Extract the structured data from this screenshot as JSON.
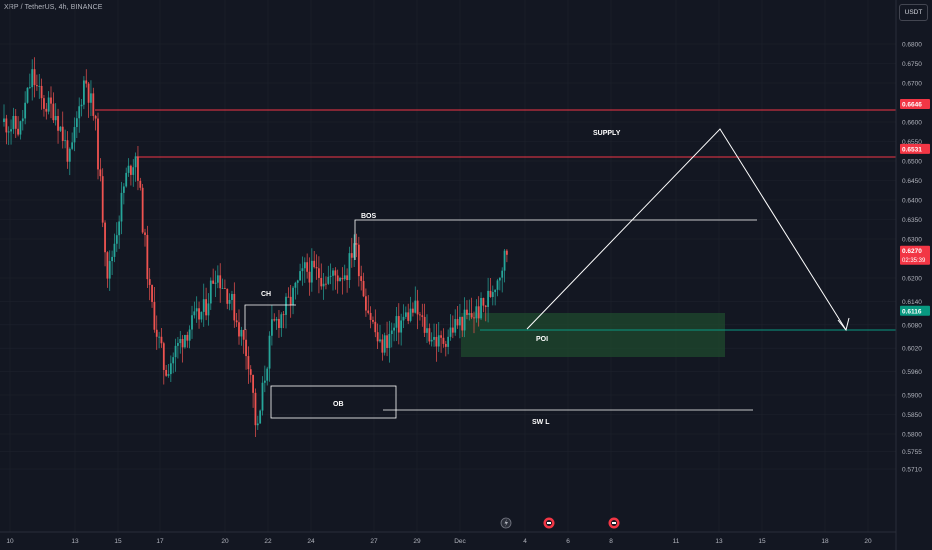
{
  "header": {
    "symbol": "XRP / TetherUS, 4h, BINANCE",
    "currency": "USDT"
  },
  "colors": {
    "background": "#131722",
    "grid": "#1e222d",
    "up": "#26a69a",
    "down": "#ef5350",
    "level_line": "#f23645",
    "poi_line": "#089981",
    "poi_zone": "#1f4a2e",
    "drawing": "#ffffff",
    "axis_text": "#b2b5be"
  },
  "chart_data": {
    "type": "candlestick",
    "timeframe": "4h",
    "y_axis": {
      "ticks": [
        0.68,
        0.675,
        0.67,
        0.66,
        0.655,
        0.65,
        0.645,
        0.64,
        0.635,
        0.63,
        0.62,
        0.614,
        0.608,
        0.602,
        0.596,
        0.59,
        0.585,
        0.58,
        0.5755,
        0.571
      ],
      "tick_labels": [
        "0.6800",
        "0.6750",
        "0.6700",
        "0.6600",
        "0.6550",
        "0.6500",
        "0.6450",
        "0.6400",
        "0.6350",
        "0.6300",
        "0.6200",
        "0.6140",
        "0.6080",
        "0.6020",
        "0.5960",
        "0.5900",
        "0.5850",
        "0.5800",
        "0.5755",
        "0.5710"
      ]
    },
    "x_axis": {
      "tick_labels": [
        "10",
        "13",
        "15",
        "17",
        "20",
        "22",
        "24",
        "27",
        "29",
        "Dec",
        "4",
        "6",
        "8",
        "11",
        "13",
        "15",
        "18",
        "20"
      ]
    },
    "price_tags": [
      {
        "label": "0.6646",
        "value": 0.6646,
        "color": "#f23645"
      },
      {
        "label": "0.6531",
        "value": 0.6531,
        "color": "#f23645"
      },
      {
        "label": "0.6270",
        "value": 0.627,
        "color": "#f23645",
        "sub": "02:35:39"
      },
      {
        "label": "0.6116",
        "value": 0.6116,
        "color": "#089981"
      }
    ],
    "annotations": [
      {
        "text": "SUPPLY"
      },
      {
        "text": "BOS"
      },
      {
        "text": "CH"
      },
      {
        "text": "OB"
      },
      {
        "text": "POI"
      },
      {
        "text": "SW L"
      }
    ]
  }
}
